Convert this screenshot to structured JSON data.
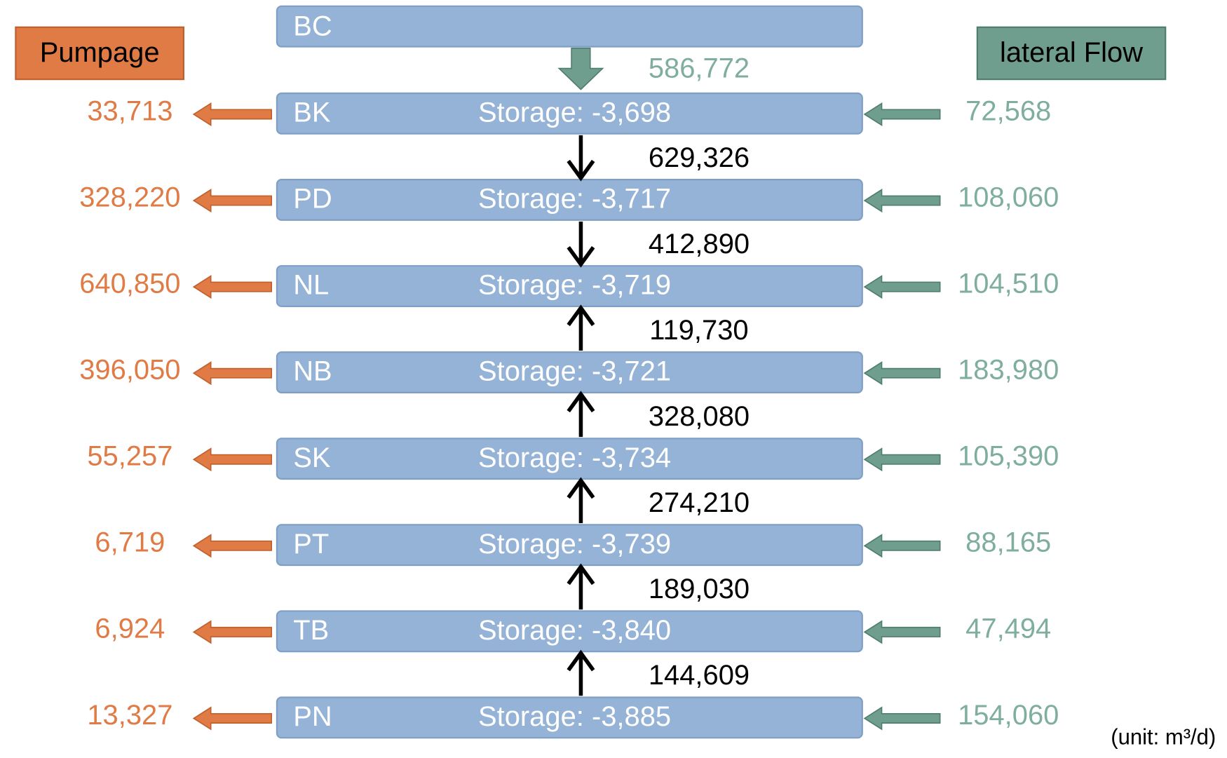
{
  "legend": {
    "pumpage": "Pumpage",
    "lateral": "lateral Flow"
  },
  "top": {
    "name": "BC",
    "flow": "586,772"
  },
  "layers": [
    {
      "name": "BK",
      "storage": "Storage: -3,698",
      "pumpage": "33,713",
      "lateral": "72,568"
    },
    {
      "name": "PD",
      "storage": "Storage: -3,717",
      "pumpage": "328,220",
      "lateral": "108,060"
    },
    {
      "name": "NL",
      "storage": "Storage: -3,719",
      "pumpage": "640,850",
      "lateral": "104,510"
    },
    {
      "name": "NB",
      "storage": "Storage: -3,721",
      "pumpage": "396,050",
      "lateral": "183,980"
    },
    {
      "name": "SK",
      "storage": "Storage: -3,734",
      "pumpage": "55,257",
      "lateral": "105,390"
    },
    {
      "name": "PT",
      "storage": "Storage: -3,739",
      "pumpage": "6,719",
      "lateral": "88,165"
    },
    {
      "name": "TB",
      "storage": "Storage: -3,840",
      "pumpage": "6,924",
      "lateral": "47,494"
    },
    {
      "name": "PN",
      "storage": "Storage: -3,885",
      "pumpage": "13,327",
      "lateral": "154,060"
    }
  ],
  "flows": [
    "629,326",
    "412,890",
    "119,730",
    "328,080",
    "274,210",
    "189,030",
    "144,609"
  ],
  "unit": "(unit: m³/d)"
}
